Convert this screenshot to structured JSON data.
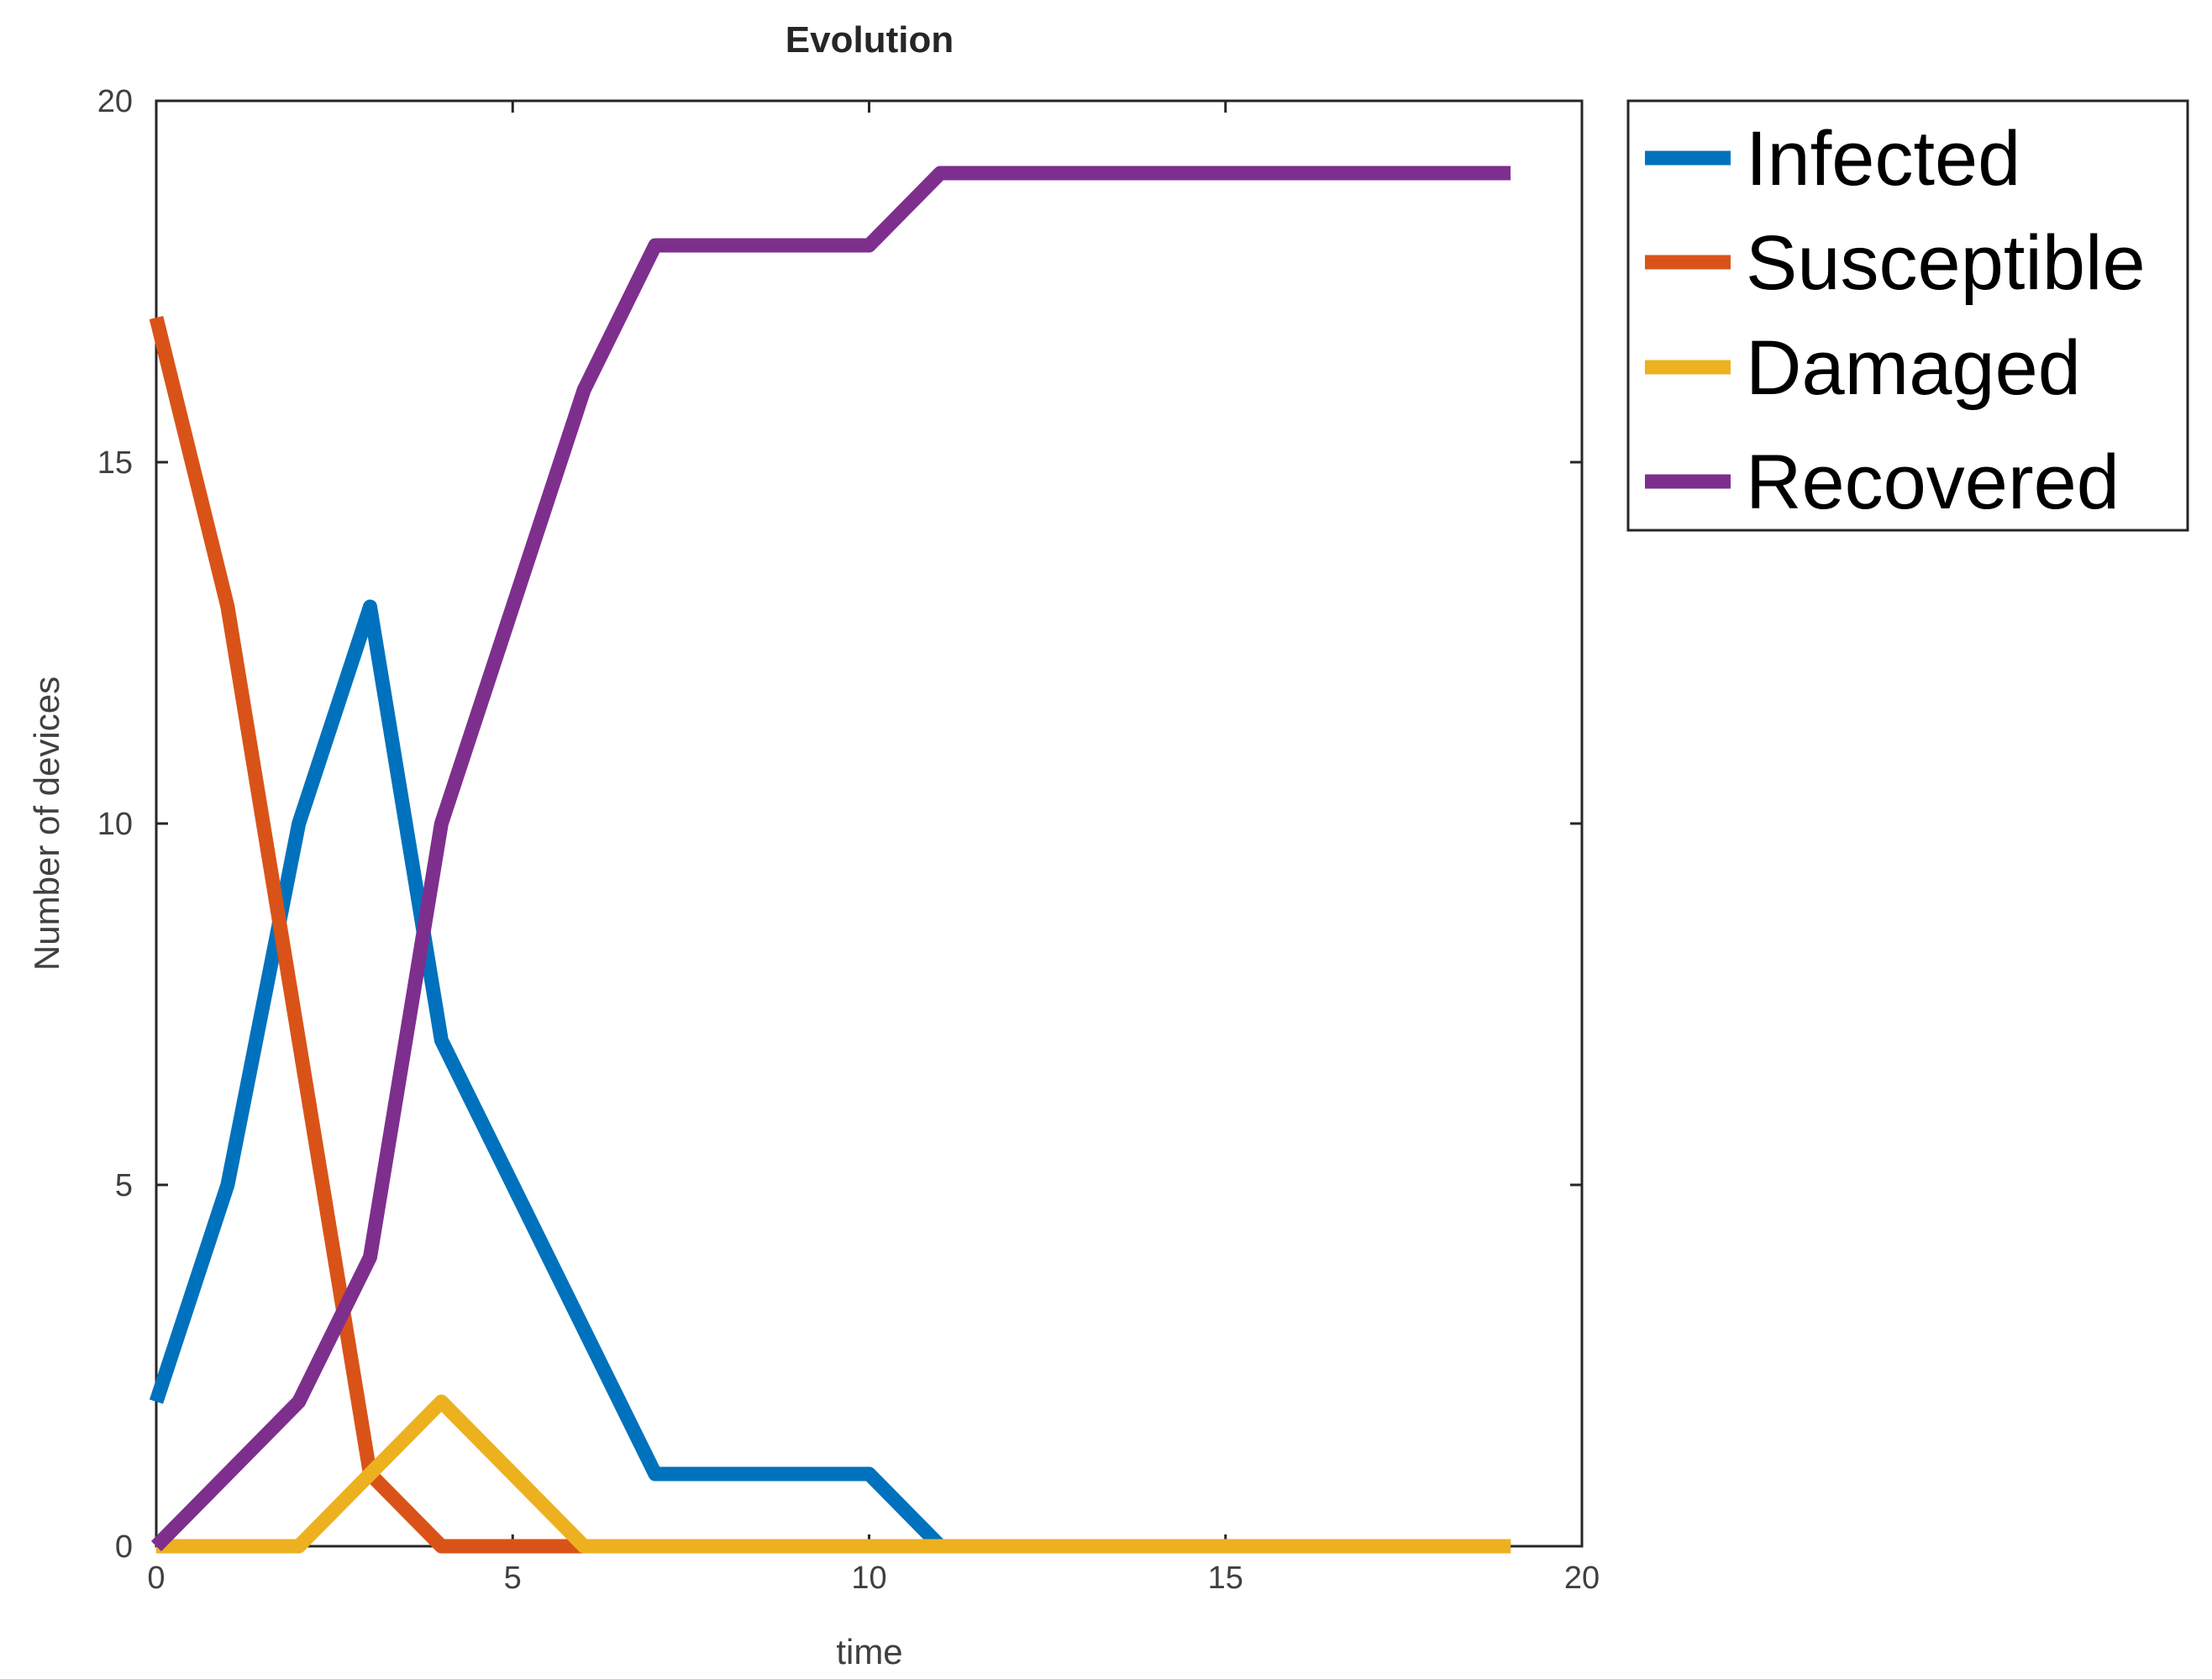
{
  "chart_data": {
    "type": "line",
    "title": "Evolution",
    "xlabel": "time",
    "ylabel": "Number of devices",
    "xlim": [
      0,
      20
    ],
    "ylim": [
      0,
      20
    ],
    "xticks": [
      "0",
      "5",
      "10",
      "15",
      "20"
    ],
    "yticks": [
      "0",
      "5",
      "10",
      "15",
      "20"
    ],
    "x": [
      0,
      1,
      2,
      3,
      4,
      5,
      6,
      7,
      8,
      9,
      10,
      11,
      12,
      13,
      14,
      15,
      16,
      17,
      18,
      19
    ],
    "series": [
      {
        "name": "Infected",
        "color": "#0072BD",
        "values": [
          2,
          5,
          10,
          13,
          7,
          5,
          3,
          1,
          1,
          1,
          1,
          0,
          0,
          0,
          0,
          0,
          0,
          0,
          0,
          0
        ]
      },
      {
        "name": "Susceptible",
        "color": "#D95319",
        "values": [
          17,
          13,
          7,
          1,
          0,
          0,
          0,
          0,
          0,
          0,
          0,
          0,
          0,
          0,
          0,
          0,
          0,
          0,
          0,
          0
        ]
      },
      {
        "name": "Damaged",
        "color": "#EDB120",
        "values": [
          0,
          0,
          0,
          1,
          2,
          1,
          0,
          0,
          0,
          0,
          0,
          0,
          0,
          0,
          0,
          0,
          0,
          0,
          0,
          0
        ]
      },
      {
        "name": "Recovered",
        "color": "#7E2F8E",
        "values": [
          0,
          1,
          2,
          4,
          10,
          13,
          16,
          18,
          18,
          18,
          18,
          19,
          19,
          19,
          19,
          19,
          19,
          19,
          19,
          19
        ]
      }
    ],
    "legend_position": "outside-top-right",
    "grid": false
  }
}
